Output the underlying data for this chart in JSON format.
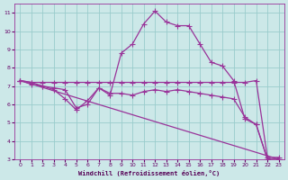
{
  "background_color": "#cce8e8",
  "grid_color": "#99cccc",
  "line_color": "#993399",
  "xlim": [
    -0.5,
    23.5
  ],
  "ylim": [
    3,
    11.5
  ],
  "xlabel": "Windchill (Refroidissement éolien,°C)",
  "xticks": [
    0,
    1,
    2,
    3,
    4,
    5,
    6,
    7,
    8,
    9,
    10,
    11,
    12,
    13,
    14,
    15,
    16,
    17,
    18,
    19,
    20,
    21,
    22,
    23
  ],
  "yticks": [
    3,
    4,
    5,
    6,
    7,
    8,
    9,
    10,
    11
  ],
  "line_flat": {
    "x": [
      0,
      1,
      2,
      3,
      4,
      5,
      6,
      7,
      8,
      9,
      10,
      11,
      12,
      13,
      14,
      15,
      16,
      17,
      18,
      19,
      20,
      21,
      22,
      23
    ],
    "y": [
      7.3,
      7.2,
      7.2,
      7.2,
      7.2,
      7.2,
      7.2,
      7.2,
      7.2,
      7.2,
      7.2,
      7.2,
      7.2,
      7.2,
      7.2,
      7.2,
      7.2,
      7.2,
      7.2,
      7.2,
      7.2,
      7.3,
      3.1,
      3.1
    ]
  },
  "line_peak": {
    "x": [
      0,
      1,
      2,
      3,
      4,
      5,
      6,
      7,
      8,
      9,
      10,
      11,
      12,
      13,
      14,
      15,
      16,
      17,
      18,
      19,
      20,
      21,
      22,
      23
    ],
    "y": [
      7.3,
      7.2,
      7.0,
      6.9,
      6.8,
      5.8,
      6.0,
      6.9,
      6.5,
      8.8,
      9.3,
      10.4,
      11.1,
      10.5,
      10.3,
      10.3,
      9.3,
      8.3,
      8.1,
      7.3,
      5.2,
      4.9,
      3.0,
      3.0
    ]
  },
  "line_wavy": {
    "x": [
      0,
      1,
      2,
      3,
      4,
      5,
      6,
      7,
      8,
      9,
      10,
      11,
      12,
      13,
      14,
      15,
      16,
      17,
      18,
      19,
      20,
      21,
      22,
      23
    ],
    "y": [
      7.3,
      7.1,
      7.0,
      6.8,
      6.3,
      5.7,
      6.2,
      6.9,
      6.6,
      6.6,
      6.5,
      6.7,
      6.8,
      6.7,
      6.8,
      6.7,
      6.6,
      6.5,
      6.4,
      6.3,
      5.3,
      4.9,
      3.0,
      3.0
    ]
  },
  "line_diag": {
    "x": [
      0,
      23
    ],
    "y": [
      7.3,
      3.0
    ]
  }
}
